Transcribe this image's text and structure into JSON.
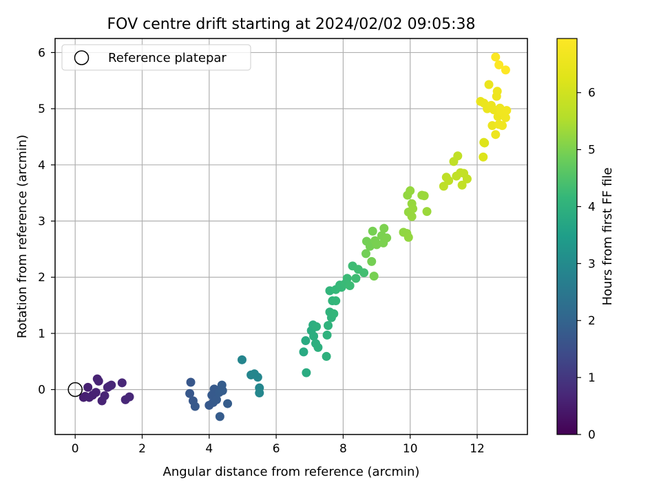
{
  "chart_data": {
    "type": "scatter",
    "title": "FOV centre drift starting at 2024/02/02 09:05:38",
    "xlabel": "Angular distance from reference (arcmin)",
    "ylabel": "Rotation from reference (arcmin)",
    "xlim": [
      -0.6,
      13.5
    ],
    "ylim": [
      -0.8,
      6.25
    ],
    "xticks": [
      0,
      2,
      4,
      6,
      8,
      10,
      12
    ],
    "yticks": [
      0,
      1,
      2,
      3,
      4,
      5,
      6
    ],
    "grid": true,
    "legend": {
      "position": "top-left",
      "entries": [
        "Reference platepar"
      ]
    },
    "reference_point": {
      "x": 0,
      "y": 0
    },
    "colorbar": {
      "label": "Hours from first FF file",
      "min": 0,
      "max": 6.95,
      "ticks": [
        0,
        1,
        2,
        3,
        4,
        5,
        6
      ],
      "colormap": "viridis"
    },
    "points": [
      {
        "x": 0.25,
        "y": -0.14,
        "h": 0.55
      },
      {
        "x": 0.3,
        "y": -0.12,
        "h": 0.56
      },
      {
        "x": 0.38,
        "y": 0.04,
        "h": 0.57
      },
      {
        "x": 0.42,
        "y": -0.14,
        "h": 0.58
      },
      {
        "x": 0.52,
        "y": -0.1,
        "h": 0.59
      },
      {
        "x": 0.62,
        "y": -0.05,
        "h": 0.6
      },
      {
        "x": 0.66,
        "y": 0.19,
        "h": 0.61
      },
      {
        "x": 0.7,
        "y": 0.15,
        "h": 0.62
      },
      {
        "x": 0.8,
        "y": -0.2,
        "h": 0.63
      },
      {
        "x": 0.88,
        "y": -0.11,
        "h": 0.64
      },
      {
        "x": 0.97,
        "y": 0.04,
        "h": 0.65
      },
      {
        "x": 1.08,
        "y": 0.08,
        "h": 0.66
      },
      {
        "x": 1.02,
        "y": 0.06,
        "h": 0.67
      },
      {
        "x": 1.4,
        "y": 0.12,
        "h": 0.68
      },
      {
        "x": 1.5,
        "y": -0.18,
        "h": 0.69
      },
      {
        "x": 1.62,
        "y": -0.13,
        "h": 0.7
      },
      {
        "x": 3.45,
        "y": 0.13,
        "h": 1.7
      },
      {
        "x": 3.42,
        "y": -0.07,
        "h": 1.71
      },
      {
        "x": 3.52,
        "y": -0.2,
        "h": 1.72
      },
      {
        "x": 3.58,
        "y": -0.3,
        "h": 1.73
      },
      {
        "x": 4.0,
        "y": -0.28,
        "h": 1.74
      },
      {
        "x": 4.08,
        "y": -0.1,
        "h": 1.75
      },
      {
        "x": 4.12,
        "y": -0.23,
        "h": 1.76
      },
      {
        "x": 4.15,
        "y": 0.01,
        "h": 1.77
      },
      {
        "x": 4.22,
        "y": -0.18,
        "h": 1.78
      },
      {
        "x": 4.3,
        "y": -0.05,
        "h": 1.8
      },
      {
        "x": 4.32,
        "y": -0.48,
        "h": 1.81
      },
      {
        "x": 4.38,
        "y": 0.08,
        "h": 1.82
      },
      {
        "x": 4.4,
        "y": -0.02,
        "h": 1.83
      },
      {
        "x": 4.55,
        "y": -0.25,
        "h": 1.84
      },
      {
        "x": 4.98,
        "y": 0.53,
        "h": 2.85
      },
      {
        "x": 5.25,
        "y": 0.26,
        "h": 2.86
      },
      {
        "x": 5.35,
        "y": 0.28,
        "h": 2.87
      },
      {
        "x": 5.45,
        "y": 0.22,
        "h": 2.88
      },
      {
        "x": 5.5,
        "y": 0.03,
        "h": 2.89
      },
      {
        "x": 5.5,
        "y": -0.06,
        "h": 2.9
      },
      {
        "x": 6.82,
        "y": 0.67,
        "h": 3.8
      },
      {
        "x": 6.88,
        "y": 0.87,
        "h": 3.82
      },
      {
        "x": 6.9,
        "y": 0.3,
        "h": 3.84
      },
      {
        "x": 7.05,
        "y": 1.05,
        "h": 3.86
      },
      {
        "x": 7.1,
        "y": 1.15,
        "h": 3.88
      },
      {
        "x": 7.12,
        "y": 0.95,
        "h": 3.9
      },
      {
        "x": 7.18,
        "y": 0.82,
        "h": 3.92
      },
      {
        "x": 7.2,
        "y": 1.12,
        "h": 3.94
      },
      {
        "x": 7.25,
        "y": 0.75,
        "h": 3.96
      },
      {
        "x": 7.5,
        "y": 0.59,
        "h": 3.98
      },
      {
        "x": 7.52,
        "y": 0.97,
        "h": 4.0
      },
      {
        "x": 7.55,
        "y": 1.14,
        "h": 4.02
      },
      {
        "x": 7.6,
        "y": 1.38,
        "h": 4.04
      },
      {
        "x": 7.65,
        "y": 1.28,
        "h": 4.06
      },
      {
        "x": 7.68,
        "y": 1.58,
        "h": 4.08
      },
      {
        "x": 7.6,
        "y": 1.76,
        "h": 4.1
      },
      {
        "x": 7.72,
        "y": 1.35,
        "h": 4.12
      },
      {
        "x": 7.78,
        "y": 1.58,
        "h": 4.14
      },
      {
        "x": 7.78,
        "y": 1.78,
        "h": 4.16
      },
      {
        "x": 7.9,
        "y": 1.86,
        "h": 4.18
      },
      {
        "x": 7.95,
        "y": 1.82,
        "h": 4.2
      },
      {
        "x": 8.05,
        "y": 1.88,
        "h": 4.22
      },
      {
        "x": 8.12,
        "y": 1.98,
        "h": 4.24
      },
      {
        "x": 8.2,
        "y": 1.85,
        "h": 4.26
      },
      {
        "x": 8.28,
        "y": 2.2,
        "h": 4.28
      },
      {
        "x": 8.38,
        "y": 1.98,
        "h": 4.3
      },
      {
        "x": 8.45,
        "y": 2.14,
        "h": 4.32
      },
      {
        "x": 8.62,
        "y": 2.08,
        "h": 4.34
      },
      {
        "x": 8.68,
        "y": 2.42,
        "h": 4.9
      },
      {
        "x": 8.7,
        "y": 2.64,
        "h": 4.91
      },
      {
        "x": 8.8,
        "y": 2.55,
        "h": 4.92
      },
      {
        "x": 8.85,
        "y": 2.28,
        "h": 4.93
      },
      {
        "x": 8.88,
        "y": 2.82,
        "h": 4.94
      },
      {
        "x": 8.92,
        "y": 2.02,
        "h": 4.95
      },
      {
        "x": 8.95,
        "y": 2.65,
        "h": 4.96
      },
      {
        "x": 9.0,
        "y": 2.58,
        "h": 4.97
      },
      {
        "x": 9.15,
        "y": 2.74,
        "h": 4.98
      },
      {
        "x": 9.2,
        "y": 2.61,
        "h": 4.99
      },
      {
        "x": 9.22,
        "y": 2.87,
        "h": 5.0
      },
      {
        "x": 9.3,
        "y": 2.7,
        "h": 5.01
      },
      {
        "x": 9.8,
        "y": 2.8,
        "h": 5.2
      },
      {
        "x": 9.9,
        "y": 2.78,
        "h": 5.21
      },
      {
        "x": 9.92,
        "y": 3.46,
        "h": 5.22
      },
      {
        "x": 9.95,
        "y": 2.71,
        "h": 5.23
      },
      {
        "x": 9.95,
        "y": 3.16,
        "h": 5.24
      },
      {
        "x": 10.0,
        "y": 3.54,
        "h": 5.25
      },
      {
        "x": 10.05,
        "y": 3.31,
        "h": 5.26
      },
      {
        "x": 10.05,
        "y": 3.08,
        "h": 5.27
      },
      {
        "x": 10.08,
        "y": 3.22,
        "h": 5.28
      },
      {
        "x": 10.35,
        "y": 3.46,
        "h": 5.29
      },
      {
        "x": 10.42,
        "y": 3.45,
        "h": 5.3
      },
      {
        "x": 10.5,
        "y": 3.17,
        "h": 5.31
      },
      {
        "x": 11.0,
        "y": 3.62,
        "h": 5.7
      },
      {
        "x": 11.08,
        "y": 3.78,
        "h": 5.71
      },
      {
        "x": 11.15,
        "y": 3.72,
        "h": 5.72
      },
      {
        "x": 11.3,
        "y": 4.06,
        "h": 5.73
      },
      {
        "x": 11.38,
        "y": 3.8,
        "h": 5.74
      },
      {
        "x": 11.42,
        "y": 4.16,
        "h": 5.75
      },
      {
        "x": 11.5,
        "y": 3.86,
        "h": 5.76
      },
      {
        "x": 11.55,
        "y": 3.64,
        "h": 5.77
      },
      {
        "x": 11.6,
        "y": 3.85,
        "h": 5.78
      },
      {
        "x": 11.7,
        "y": 3.75,
        "h": 5.79
      },
      {
        "x": 12.18,
        "y": 4.14,
        "h": 6.2
      },
      {
        "x": 12.2,
        "y": 4.4,
        "h": 6.21
      },
      {
        "x": 12.22,
        "y": 4.39,
        "h": 6.22
      },
      {
        "x": 12.1,
        "y": 5.13,
        "h": 6.5
      },
      {
        "x": 12.2,
        "y": 5.1,
        "h": 6.51
      },
      {
        "x": 12.3,
        "y": 5.0,
        "h": 6.52
      },
      {
        "x": 12.35,
        "y": 5.43,
        "h": 6.53
      },
      {
        "x": 12.42,
        "y": 5.06,
        "h": 6.54
      },
      {
        "x": 12.45,
        "y": 4.7,
        "h": 6.55
      },
      {
        "x": 12.5,
        "y": 4.98,
        "h": 6.56
      },
      {
        "x": 12.55,
        "y": 4.54,
        "h": 6.57
      },
      {
        "x": 12.58,
        "y": 5.22,
        "h": 6.58
      },
      {
        "x": 12.6,
        "y": 5.31,
        "h": 6.59
      },
      {
        "x": 12.62,
        "y": 4.86,
        "h": 6.6
      },
      {
        "x": 12.65,
        "y": 4.72,
        "h": 6.61
      },
      {
        "x": 12.68,
        "y": 5.01,
        "h": 6.62
      },
      {
        "x": 12.72,
        "y": 4.95,
        "h": 6.63
      },
      {
        "x": 12.75,
        "y": 4.7,
        "h": 6.64
      },
      {
        "x": 12.85,
        "y": 4.84,
        "h": 6.65
      },
      {
        "x": 12.88,
        "y": 4.97,
        "h": 6.66
      },
      {
        "x": 12.55,
        "y": 5.92,
        "h": 6.9
      },
      {
        "x": 12.65,
        "y": 5.78,
        "h": 6.92
      },
      {
        "x": 12.85,
        "y": 5.69,
        "h": 6.94
      }
    ]
  }
}
